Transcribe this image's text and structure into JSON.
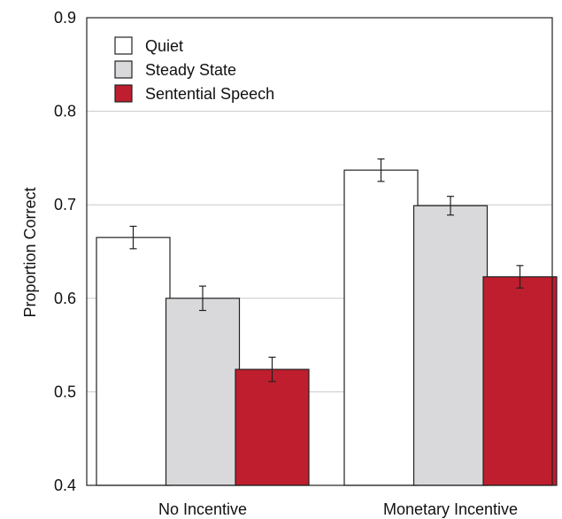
{
  "chart_data": {
    "type": "bar",
    "ylabel": "Proportion Correct",
    "ylim": [
      0.4,
      0.9
    ],
    "yticks": [
      "0.4",
      "0.5",
      "0.6",
      "0.7",
      "0.8",
      "0.9"
    ],
    "grid": true,
    "legend_position": "top-left",
    "categories": [
      "No Incentive",
      "Monetary Incentive"
    ],
    "series": [
      {
        "name": "Quiet",
        "color": "#ffffff",
        "values": [
          0.665,
          0.737
        ],
        "errors": [
          0.012,
          0.012
        ]
      },
      {
        "name": "Steady State",
        "color": "#d9d9db",
        "values": [
          0.6,
          0.699
        ],
        "errors": [
          0.013,
          0.01
        ]
      },
      {
        "name": "Sentential Speech",
        "color": "#be1e2d",
        "values": [
          0.524,
          0.623
        ],
        "errors": [
          0.013,
          0.012
        ]
      }
    ]
  }
}
